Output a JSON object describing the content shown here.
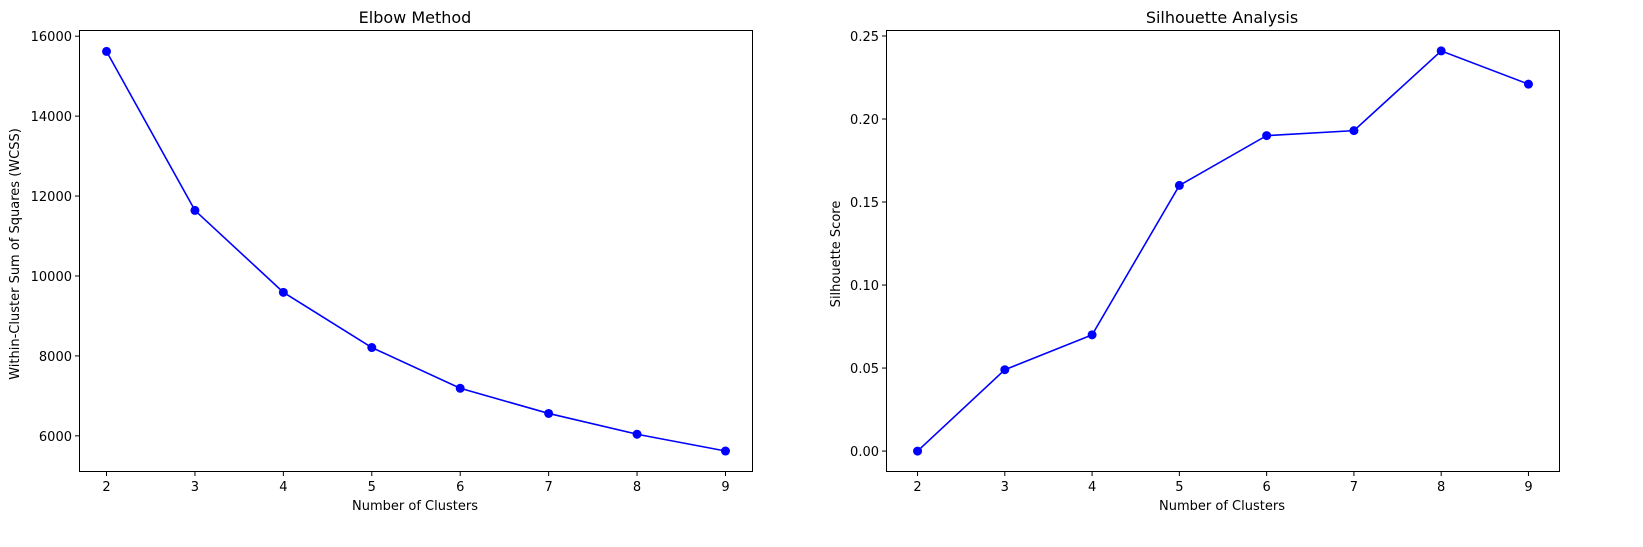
{
  "chart_data": [
    {
      "type": "line",
      "title": "Elbow Method",
      "xlabel": "Number of Clusters",
      "ylabel": "Within-Cluster Sum of Squares (WCSS)",
      "x": [
        2,
        3,
        4,
        5,
        6,
        7,
        8,
        9
      ],
      "series": [
        {
          "values": [
            15620,
            11640,
            9590,
            8210,
            7190,
            6560,
            6040,
            5620
          ]
        }
      ],
      "xlim": [
        1.7,
        9.3
      ],
      "ylim": [
        5120,
        16130
      ],
      "xticks": [
        "2",
        "3",
        "4",
        "5",
        "6",
        "7",
        "8",
        "9"
      ],
      "xtick_values": [
        2,
        3,
        4,
        5,
        6,
        7,
        8,
        9
      ],
      "yticks": [
        "6000",
        "8000",
        "10000",
        "12000",
        "14000",
        "16000"
      ],
      "ytick_values": [
        6000,
        8000,
        10000,
        12000,
        14000,
        16000
      ],
      "grid": false,
      "marker": "circle",
      "color": "#0000ff"
    },
    {
      "type": "line",
      "title": "Silhouette Analysis",
      "xlabel": "Number of Clusters",
      "ylabel": "Silhouette Score",
      "x": [
        2,
        3,
        4,
        5,
        6,
        7,
        8,
        9
      ],
      "series": [
        {
          "values": [
            0.0,
            0.049,
            0.07,
            0.16,
            0.19,
            0.193,
            0.241,
            0.221
          ]
        }
      ],
      "xlim": [
        1.65,
        9.35
      ],
      "ylim": [
        -0.012,
        0.253
      ],
      "xticks": [
        "2",
        "3",
        "4",
        "5",
        "6",
        "7",
        "8",
        "9"
      ],
      "xtick_values": [
        2,
        3,
        4,
        5,
        6,
        7,
        8,
        9
      ],
      "yticks": [
        "0.00",
        "0.05",
        "0.10",
        "0.15",
        "0.20",
        "0.25"
      ],
      "ytick_values": [
        0.0,
        0.05,
        0.1,
        0.15,
        0.2,
        0.25
      ],
      "grid": false,
      "marker": "circle",
      "color": "#0000ff"
    }
  ]
}
